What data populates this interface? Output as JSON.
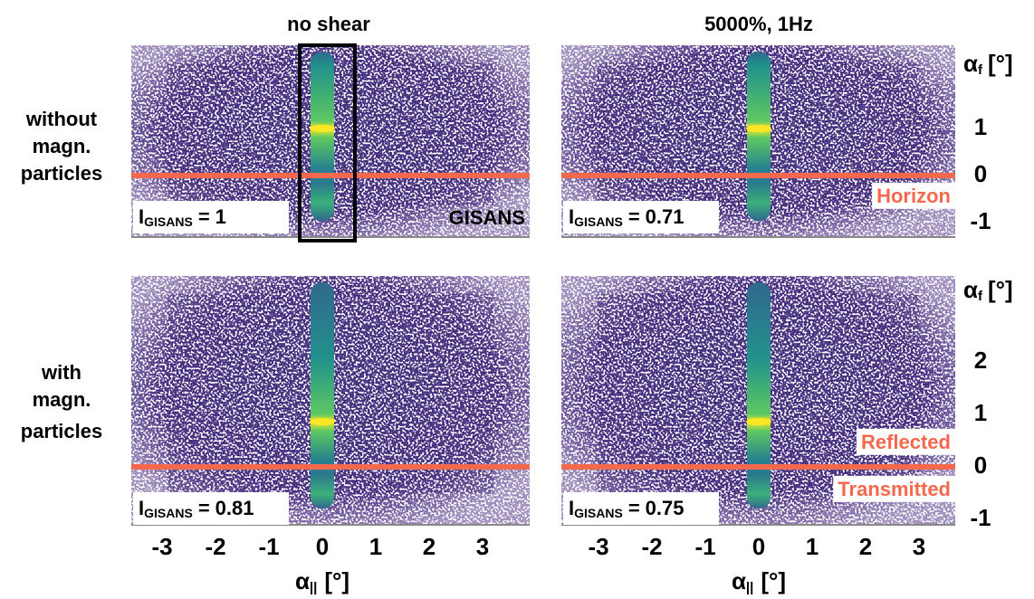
{
  "column_titles": [
    "no shear",
    "5000%, 1Hz"
  ],
  "row_labels": [
    [
      "without",
      "magn.",
      "particles"
    ],
    [
      "with",
      "magn.",
      "particles"
    ]
  ],
  "panels": [
    {
      "intensity": {
        "symbol": "I",
        "subscript": "GISANS",
        "relation": "=",
        "value": 1
      },
      "annotations": [
        "GISANS"
      ]
    },
    {
      "intensity": {
        "symbol": "I",
        "subscript": "GISANS",
        "relation": "=",
        "value": 0.71
      },
      "annotations": [
        "Horizon"
      ]
    },
    {
      "intensity": {
        "symbol": "I",
        "subscript": "GISANS",
        "relation": "=",
        "value": 0.81
      }
    },
    {
      "intensity": {
        "symbol": "I",
        "subscript": "GISANS",
        "relation": "=",
        "value": 0.75
      },
      "annotations": [
        "Reflected",
        "Transmitted"
      ]
    }
  ],
  "x_axis": {
    "symbol": "α",
    "subscript": "||",
    "unit": "[°]",
    "ticks": [
      -3,
      -2,
      -1,
      0,
      1,
      2,
      3
    ]
  },
  "y_axes": [
    {
      "symbol": "α",
      "subscript": "f",
      "unit": "[°]",
      "ticks": [
        -1,
        0,
        1
      ]
    },
    {
      "symbol": "α",
      "subscript": "f",
      "unit": "[°]",
      "ticks": [
        -1,
        0,
        1,
        2
      ]
    }
  ]
}
